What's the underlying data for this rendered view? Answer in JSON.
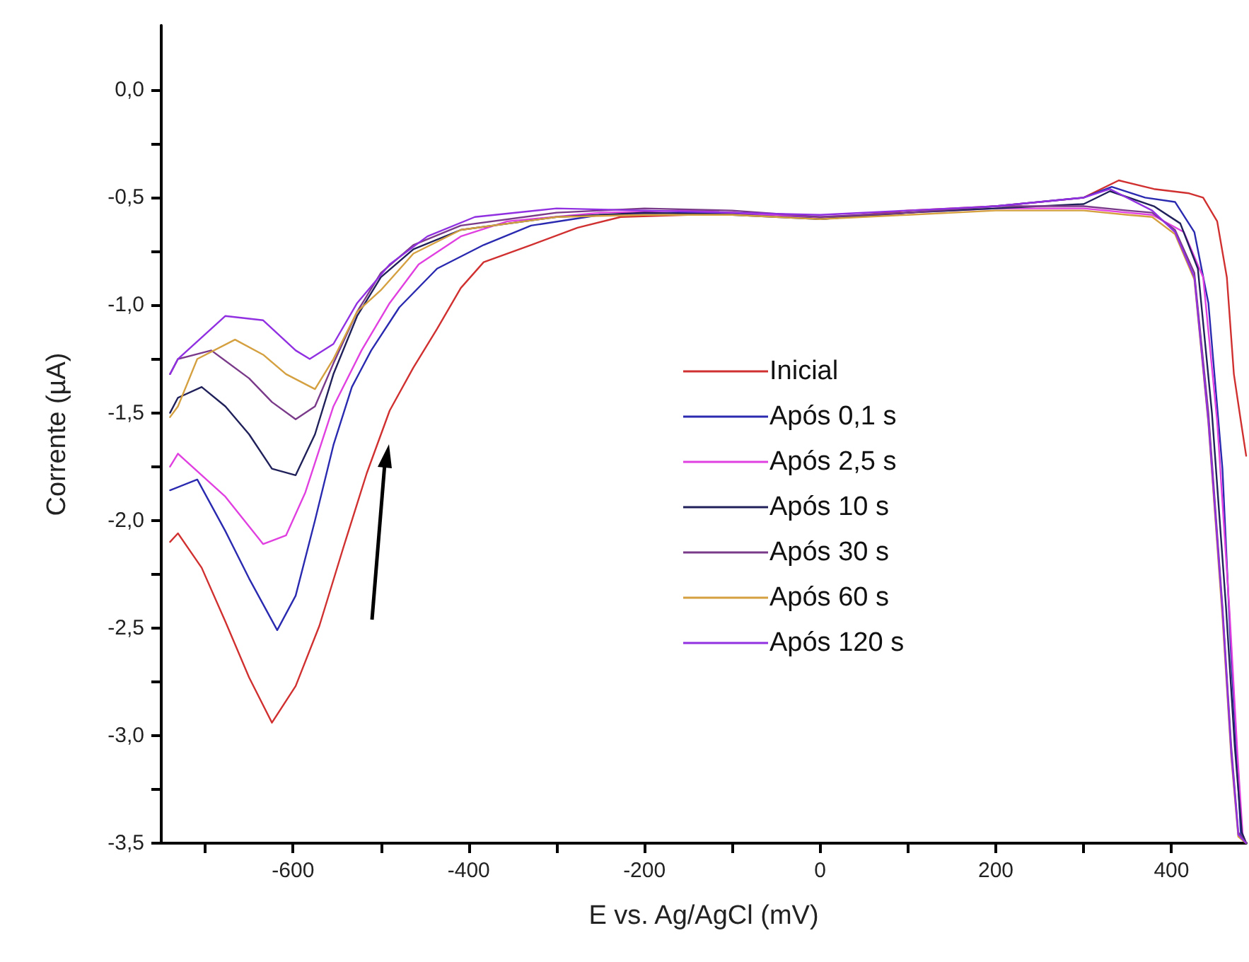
{
  "chart_data": {
    "type": "line",
    "xlabel": "E vs. Ag/AgCl (mV)",
    "ylabel": "Corrente (µA)",
    "xlim": [
      -750,
      485
    ],
    "xticks": [
      {
        "value": -700,
        "label": null
      },
      -600,
      {
        "value": -500,
        "label": null
      },
      -400,
      {
        "value": -300,
        "label": null
      },
      -200,
      {
        "value": -100,
        "label": null
      },
      0,
      {
        "value": 100,
        "label": null
      },
      200,
      {
        "value": 300,
        "label": null
      },
      400
    ],
    "ylim": [
      -3.5,
      0.3
    ],
    "yticks": [
      {
        "value": -3.5,
        "label": "-3,5"
      },
      {
        "value": -3.25,
        "label": null
      },
      {
        "value": -3,
        "label": "-3,0"
      },
      {
        "value": -2.75,
        "label": null
      },
      {
        "value": -2.5,
        "label": "-2,5"
      },
      {
        "value": -2.25,
        "label": null
      },
      {
        "value": -2,
        "label": "-2,0"
      },
      {
        "value": -1.75,
        "label": null
      },
      {
        "value": -1.5,
        "label": "-1,5"
      },
      {
        "value": -1.25,
        "label": null
      },
      {
        "value": -1,
        "label": "-1,0"
      },
      {
        "value": -0.75,
        "label": null
      },
      {
        "value": -0.5,
        "label": "-0,5"
      },
      {
        "value": -0.25,
        "label": null
      },
      {
        "value": 0,
        "label": "0,0"
      }
    ],
    "grid": false,
    "legend": "right",
    "marker": "none",
    "line_style": "solid",
    "series": [
      {
        "name": "Inicial",
        "color": "#d03030",
        "x": [
          -740,
          -731,
          -704,
          -677,
          -650,
          -624,
          -597,
          -570,
          -543,
          -516,
          -490,
          -463,
          -436,
          -409,
          -383,
          -329,
          -276,
          -227,
          -150,
          -100,
          -50,
          0,
          50,
          100,
          150,
          200,
          250,
          300,
          340,
          380,
          420,
          436,
          452,
          463,
          471,
          479,
          485
        ],
        "values": [
          -2.1,
          -2.06,
          -2.22,
          -2.47,
          -2.73,
          -2.94,
          -2.77,
          -2.49,
          -2.13,
          -1.78,
          -1.49,
          -1.29,
          -1.11,
          -0.92,
          -0.8,
          -0.72,
          -0.64,
          -0.59,
          -0.58,
          -0.57,
          -0.58,
          -0.6,
          -0.58,
          -0.56,
          -0.55,
          -0.54,
          -0.52,
          -0.5,
          -0.42,
          -0.46,
          -0.48,
          -0.5,
          -0.61,
          -0.87,
          -1.32,
          -1.54,
          -1.7
        ]
      },
      {
        "name": "Após 0,1 s",
        "color": "#2a2ab0",
        "x": [
          -740,
          -709,
          -677,
          -650,
          -618,
          -597,
          -575,
          -554,
          -533,
          -511,
          -479,
          -436,
          -383,
          -329,
          -250,
          -150,
          -50,
          0,
          100,
          200,
          300,
          332,
          370,
          404,
          426,
          442,
          458,
          468,
          479,
          485
        ],
        "values": [
          -1.86,
          -1.81,
          -2.05,
          -2.27,
          -2.51,
          -2.35,
          -2.0,
          -1.65,
          -1.38,
          -1.21,
          -1.01,
          -0.83,
          -0.72,
          -0.63,
          -0.58,
          -0.57,
          -0.58,
          -0.6,
          -0.57,
          -0.54,
          -0.5,
          -0.45,
          -0.5,
          -0.52,
          -0.66,
          -0.99,
          -1.76,
          -2.64,
          -3.46,
          -3.5
        ]
      },
      {
        "name": "Após 2,5 s",
        "color": "#e040e0",
        "x": [
          -740,
          -731,
          -677,
          -634,
          -608,
          -586,
          -554,
          -522,
          -490,
          -457,
          -409,
          -356,
          -250,
          -150,
          -50,
          0,
          100,
          200,
          300,
          350,
          378,
          414,
          436,
          452,
          466,
          475,
          481,
          485
        ],
        "values": [
          -1.75,
          -1.69,
          -1.89,
          -2.11,
          -2.07,
          -1.87,
          -1.47,
          -1.21,
          -0.99,
          -0.81,
          -0.68,
          -0.61,
          -0.57,
          -0.56,
          -0.58,
          -0.59,
          -0.57,
          -0.55,
          -0.55,
          -0.57,
          -0.58,
          -0.66,
          -0.87,
          -1.54,
          -2.42,
          -3.08,
          -3.46,
          -3.5
        ]
      },
      {
        "name": "Após 10 s",
        "color": "#20205a",
        "x": [
          -740,
          -731,
          -704,
          -677,
          -650,
          -624,
          -597,
          -575,
          -554,
          -527,
          -500,
          -463,
          -409,
          -300,
          -200,
          -100,
          0,
          100,
          200,
          300,
          330,
          380,
          410,
          430,
          446,
          462,
          472,
          480,
          485
        ],
        "values": [
          -1.5,
          -1.43,
          -1.38,
          -1.47,
          -1.6,
          -1.76,
          -1.79,
          -1.6,
          -1.32,
          -1.05,
          -0.87,
          -0.74,
          -0.65,
          -0.59,
          -0.57,
          -0.58,
          -0.6,
          -0.57,
          -0.55,
          -0.53,
          -0.47,
          -0.54,
          -0.62,
          -0.83,
          -1.5,
          -2.4,
          -3.05,
          -3.45,
          -3.5
        ]
      },
      {
        "name": "Após 30 s",
        "color": "#7a3a8a",
        "x": [
          -740,
          -731,
          -693,
          -650,
          -624,
          -597,
          -575,
          -554,
          -527,
          -500,
          -463,
          -409,
          -300,
          -200,
          -100,
          0,
          100,
          200,
          300,
          350,
          378,
          404,
          426,
          442,
          458,
          468,
          476,
          485
        ],
        "values": [
          -1.32,
          -1.25,
          -1.21,
          -1.34,
          -1.45,
          -1.53,
          -1.47,
          -1.27,
          -1.03,
          -0.85,
          -0.72,
          -0.63,
          -0.57,
          -0.55,
          -0.56,
          -0.59,
          -0.57,
          -0.54,
          -0.54,
          -0.56,
          -0.57,
          -0.65,
          -0.85,
          -1.5,
          -2.4,
          -3.05,
          -3.45,
          -3.5
        ]
      },
      {
        "name": "Após 60 s",
        "color": "#d4a040",
        "x": [
          -740,
          -731,
          -709,
          -666,
          -634,
          -608,
          -575,
          -554,
          -527,
          -500,
          -463,
          -409,
          -300,
          -200,
          -100,
          0,
          100,
          200,
          300,
          350,
          378,
          404,
          426,
          442,
          458,
          468,
          476,
          485
        ],
        "values": [
          -1.52,
          -1.47,
          -1.25,
          -1.16,
          -1.23,
          -1.32,
          -1.39,
          -1.25,
          -1.03,
          -0.93,
          -0.76,
          -0.65,
          -0.59,
          -0.58,
          -0.58,
          -0.6,
          -0.58,
          -0.56,
          -0.56,
          -0.58,
          -0.59,
          -0.67,
          -0.88,
          -1.55,
          -2.45,
          -3.1,
          -3.47,
          -3.5
        ]
      },
      {
        "name": "Após 120 s",
        "color": "#9030e0",
        "x": [
          -740,
          -731,
          -677,
          -634,
          -597,
          -581,
          -554,
          -527,
          -490,
          -447,
          -393,
          -300,
          -200,
          -100,
          0,
          100,
          200,
          300,
          330,
          378,
          404,
          426,
          442,
          458,
          468,
          476,
          485
        ],
        "values": [
          -1.32,
          -1.25,
          -1.05,
          -1.07,
          -1.21,
          -1.25,
          -1.18,
          -0.99,
          -0.81,
          -0.68,
          -0.59,
          -0.55,
          -0.56,
          -0.57,
          -0.58,
          -0.56,
          -0.54,
          -0.5,
          -0.46,
          -0.56,
          -0.66,
          -0.87,
          -1.54,
          -2.42,
          -3.08,
          -3.46,
          -3.5
        ]
      }
    ]
  }
}
